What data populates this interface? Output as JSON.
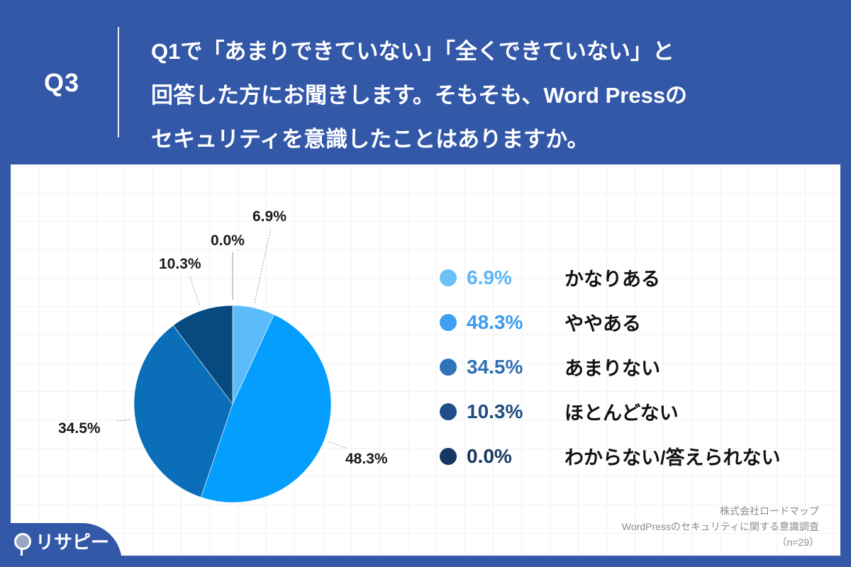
{
  "header": {
    "question_number": "Q3",
    "question_lines": [
      "Q1で「あまりできていない」「全くできていない」と",
      "回答した方にお聞きします。そもそも、Word Pressの",
      "セキュリティを意識したことはありますか。"
    ]
  },
  "chart_data": {
    "type": "pie",
    "title": "Q1で「あまりできていない」「全くできていない」と回答した方にお聞きします。そもそも、Word Pressのセキュリティを意識したことはありますか。",
    "categories": [
      "かなりある",
      "ややある",
      "あまりない",
      "ほとんどない",
      "わからない/答えられない"
    ],
    "values": [
      6.9,
      48.3,
      34.5,
      10.3,
      0.0
    ],
    "value_labels": [
      "6.9%",
      "48.3%",
      "34.5%",
      "10.3%",
      "0.0%"
    ],
    "colors": [
      "#5cbcfb",
      "#049ffe",
      "#0a6fb8",
      "#064a80",
      "#0f3563"
    ],
    "start_angle": "12 o'clock, clockwise",
    "legend_position": "right",
    "n": 29
  },
  "legend": {
    "items": [
      {
        "pct": "6.9%",
        "label": "かなりある",
        "color": "#6cc0f8",
        "text_color": "#5ab6f6"
      },
      {
        "pct": "48.3%",
        "label": "ややある",
        "color": "#3f9ff0",
        "text_color": "#3b9bef"
      },
      {
        "pct": "34.5%",
        "label": "あまりない",
        "color": "#2f73b8",
        "text_color": "#2e6fb4"
      },
      {
        "pct": "10.3%",
        "label": "ほとんどない",
        "color": "#1f4f86",
        "text_color": "#1f4c82"
      },
      {
        "pct": "0.0%",
        "label": "わからない/答えられない",
        "color": "#163764",
        "text_color": "#173763"
      }
    ]
  },
  "pie_labels": [
    "6.9%",
    "48.3%",
    "34.5%",
    "10.3%",
    "0.0%"
  ],
  "source": {
    "company": "株式会社ロードマップ",
    "survey": "WordPressのセキュリティに関する意識調査",
    "sample": "（n=29）"
  },
  "logo": {
    "text": "リサピー"
  }
}
